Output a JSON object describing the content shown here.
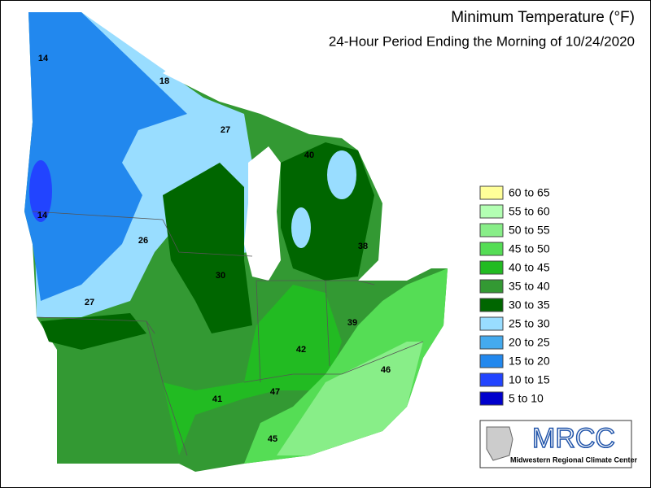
{
  "header": {
    "title": "Minimum Temperature (°F)",
    "subtitle": "24-Hour Period Ending the Morning of 10/24/2020"
  },
  "legend": {
    "items": [
      {
        "label": "60 to 65",
        "color": "#ffff99"
      },
      {
        "label": "55 to 60",
        "color": "#b3ffb3"
      },
      {
        "label": "50 to 55",
        "color": "#88ee88"
      },
      {
        "label": "45 to 50",
        "color": "#55dd55"
      },
      {
        "label": "40 to 45",
        "color": "#22bb22"
      },
      {
        "label": "35 to 40",
        "color": "#339933"
      },
      {
        "label": "30 to 35",
        "color": "#006600"
      },
      {
        "label": "25 to 30",
        "color": "#99ddff"
      },
      {
        "label": "20 to 25",
        "color": "#44aaee"
      },
      {
        "label": "15 to 20",
        "color": "#2288ee"
      },
      {
        "label": "10 to 15",
        "color": "#2244ff"
      },
      {
        "label": "5 to 10",
        "color": "#0000cc"
      }
    ]
  },
  "map_labels": [
    14,
    18,
    27,
    40,
    14,
    26,
    38,
    30,
    27,
    39,
    42,
    46,
    47,
    41,
    45
  ],
  "logo": {
    "name": "MRCC",
    "full_name": "Midwestern Regional Climate Center"
  }
}
